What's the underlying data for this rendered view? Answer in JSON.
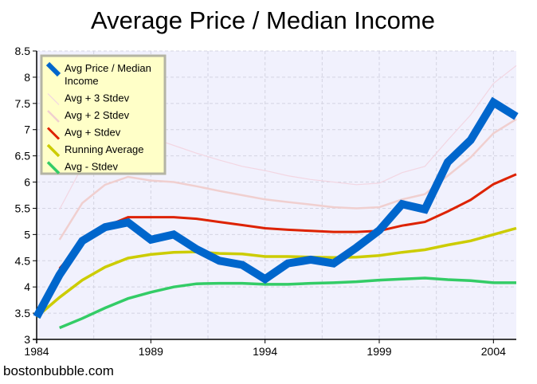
{
  "chart_data": {
    "type": "line",
    "title": "Average Price / Median Income",
    "xlabel": "",
    "ylabel": "",
    "xlim": [
      1984,
      2005
    ],
    "ylim": [
      3,
      8.5
    ],
    "x_ticks": [
      "1984",
      "1989",
      "1994",
      "1999",
      "2004"
    ],
    "y_ticks": [
      "3",
      "3.5",
      "4",
      "4.5",
      "5",
      "5.5",
      "6",
      "6.5",
      "7",
      "7.5",
      "8",
      "8.5"
    ],
    "grid": true,
    "legend_position": "top-left",
    "x": [
      1984,
      1985,
      1986,
      1987,
      1988,
      1989,
      1990,
      1991,
      1992,
      1993,
      1994,
      1995,
      1996,
      1997,
      1998,
      1999,
      2000,
      2001,
      2002,
      2003,
      2004,
      2005
    ],
    "series": [
      {
        "name": "Avg + 3 Stdev",
        "legend": [
          "Avg + 3 Stdev"
        ],
        "color": "#f2d6e2",
        "width": 1.2,
        "values": [
          null,
          5.48,
          6.3,
          6.9,
          7.0,
          6.85,
          6.7,
          6.55,
          6.42,
          6.3,
          6.22,
          6.12,
          6.05,
          6.0,
          5.95,
          5.98,
          6.18,
          6.3,
          6.8,
          7.28,
          7.88,
          8.22
        ]
      },
      {
        "name": "Avg + 2 Stdev",
        "legend": [
          "Avg + 2 Stdev"
        ],
        "color": "#f0cfcf",
        "width": 2.5,
        "values": [
          null,
          4.9,
          5.6,
          5.95,
          6.1,
          6.03,
          6.0,
          5.92,
          5.83,
          5.75,
          5.67,
          5.62,
          5.57,
          5.52,
          5.5,
          5.52,
          5.67,
          5.77,
          6.12,
          6.47,
          6.93,
          7.2
        ]
      },
      {
        "name": "Avg + Stdev",
        "legend": [
          "Avg + Stdev"
        ],
        "color": "#dd2200",
        "width": 3,
        "values": [
          null,
          4.35,
          4.85,
          5.15,
          5.33,
          5.33,
          5.33,
          5.3,
          5.24,
          5.18,
          5.12,
          5.09,
          5.07,
          5.05,
          5.05,
          5.07,
          5.17,
          5.24,
          5.44,
          5.66,
          5.96,
          6.15
        ]
      },
      {
        "name": "Running Average",
        "legend": [
          "Running Average"
        ],
        "color": "#cccc00",
        "width": 3.5,
        "values": [
          3.43,
          3.8,
          4.13,
          4.38,
          4.55,
          4.62,
          4.66,
          4.67,
          4.64,
          4.63,
          4.58,
          4.58,
          4.57,
          4.56,
          4.57,
          4.6,
          4.66,
          4.71,
          4.8,
          4.88,
          5.0,
          5.12
        ]
      },
      {
        "name": "Avg - Stdev",
        "legend": [
          "Avg - Stdev"
        ],
        "color": "#33cc66",
        "width": 3.5,
        "values": [
          null,
          3.22,
          3.4,
          3.6,
          3.78,
          3.9,
          4.0,
          4.06,
          4.07,
          4.07,
          4.05,
          4.05,
          4.07,
          4.08,
          4.1,
          4.13,
          4.15,
          4.17,
          4.14,
          4.12,
          4.08,
          4.08
        ]
      },
      {
        "name": "Avg Price / Median Income",
        "legend": [
          "Avg Price / Median",
          "Income"
        ],
        "color": "#0066cc",
        "width": 10,
        "values": [
          3.43,
          4.23,
          4.88,
          5.14,
          5.23,
          4.9,
          5.0,
          4.72,
          4.5,
          4.42,
          4.15,
          4.45,
          4.52,
          4.45,
          4.75,
          5.08,
          5.58,
          5.48,
          6.38,
          6.8,
          7.52,
          7.25
        ]
      }
    ],
    "legend_order": [
      "Avg Price / Median Income",
      "Avg + 3 Stdev",
      "Avg + 2 Stdev",
      "Avg + Stdev",
      "Running Average",
      "Avg - Stdev"
    ]
  },
  "credit": "bostonbubble.com"
}
